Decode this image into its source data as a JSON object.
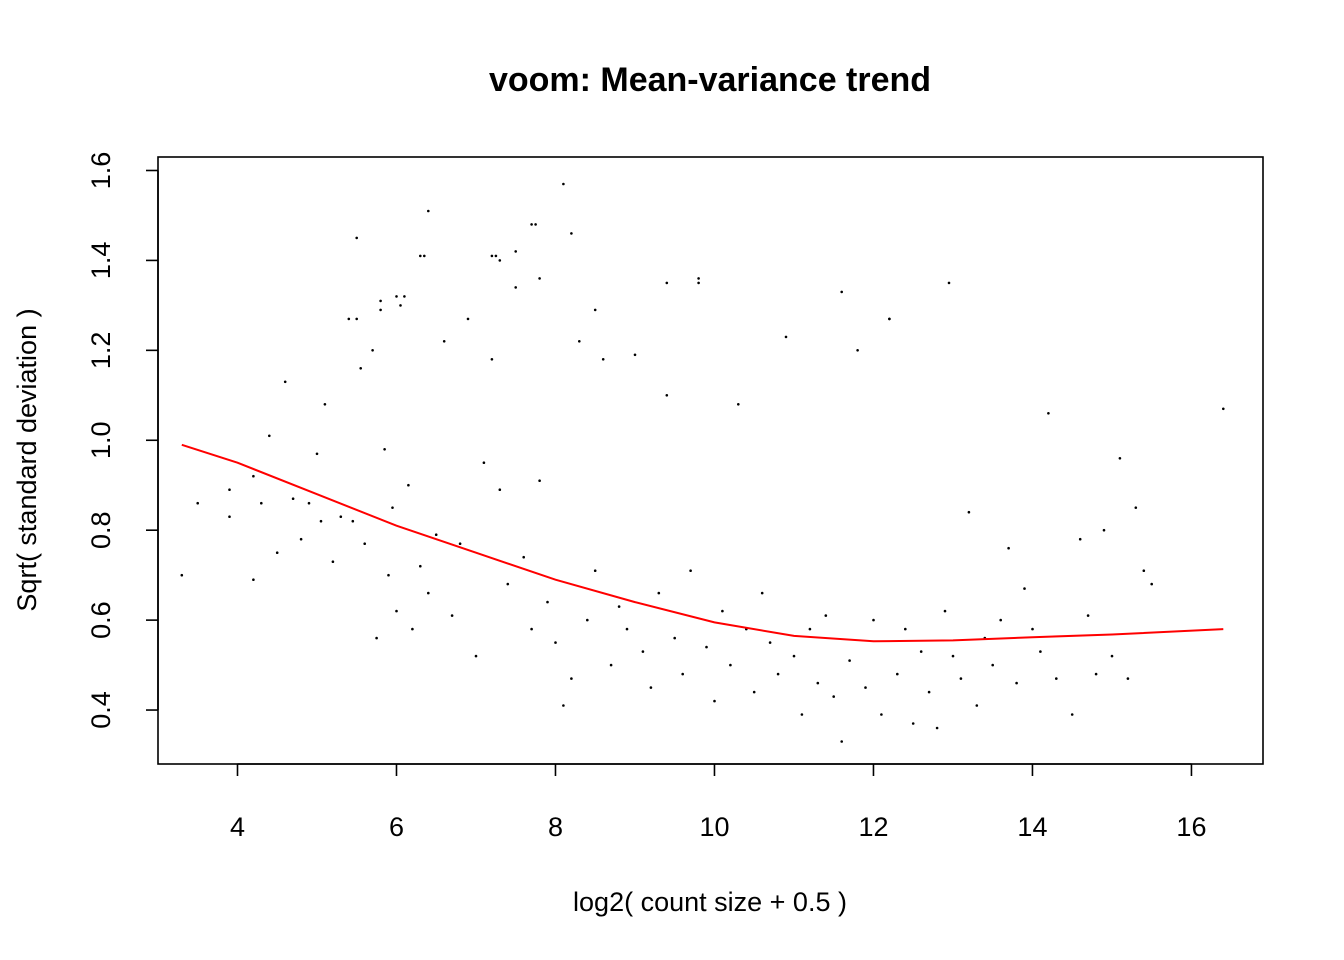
{
  "chart_data": {
    "type": "scatter",
    "title": "voom: Mean-variance trend",
    "xlabel": "log2( count size + 0.5 )",
    "ylabel": "Sqrt( standard deviation )",
    "xlim": [
      3.0,
      16.9
    ],
    "ylim": [
      0.28,
      1.63
    ],
    "x_ticks": [
      4,
      6,
      8,
      10,
      12,
      14,
      16
    ],
    "y_ticks": [
      0.4,
      0.6,
      0.8,
      1.0,
      1.2,
      1.4,
      1.6
    ],
    "x_tick_labels": [
      "4",
      "6",
      "8",
      "10",
      "12",
      "14",
      "16"
    ],
    "y_tick_labels": [
      "0.4",
      "0.6",
      "0.8",
      "1.0",
      "1.2",
      "1.4",
      "1.6"
    ],
    "point_color": "#000000",
    "trend_color": "#ff0000",
    "trend_line": {
      "x": [
        3.3,
        4.0,
        5.0,
        6.0,
        7.0,
        8.0,
        9.0,
        10.0,
        11.0,
        12.0,
        13.0,
        14.0,
        15.0,
        16.4
      ],
      "y": [
        0.99,
        0.95,
        0.88,
        0.81,
        0.75,
        0.69,
        0.64,
        0.595,
        0.565,
        0.553,
        0.555,
        0.562,
        0.568,
        0.58
      ]
    },
    "points": {
      "x": [
        3.3,
        3.5,
        3.9,
        3.9,
        4.2,
        4.2,
        4.3,
        4.4,
        4.5,
        4.6,
        4.7,
        4.8,
        4.9,
        5.0,
        5.05,
        5.1,
        5.2,
        5.3,
        5.4,
        5.45,
        5.5,
        5.55,
        5.6,
        5.7,
        5.75,
        5.8,
        5.85,
        5.9,
        5.95,
        6.0,
        6.05,
        6.1,
        6.15,
        6.2,
        6.3,
        6.35,
        6.4,
        6.5,
        6.6,
        6.7,
        6.8,
        6.9,
        7.0,
        7.1,
        7.2,
        7.25,
        7.3,
        7.4,
        7.5,
        7.6,
        7.7,
        7.75,
        7.8,
        7.9,
        8.0,
        8.1,
        8.2,
        8.3,
        8.4,
        8.5,
        8.6,
        8.7,
        8.8,
        8.9,
        9.0,
        9.1,
        9.2,
        9.3,
        9.4,
        9.5,
        9.6,
        9.7,
        9.8,
        9.9,
        10.0,
        10.1,
        10.2,
        10.3,
        10.4,
        10.5,
        10.6,
        10.7,
        10.8,
        10.9,
        11.0,
        11.1,
        11.2,
        11.3,
        11.4,
        11.5,
        11.6,
        11.7,
        11.8,
        11.9,
        12.0,
        12.1,
        12.2,
        12.3,
        12.4,
        12.5,
        12.6,
        12.7,
        12.8,
        12.9,
        13.0,
        13.1,
        13.2,
        13.3,
        13.4,
        13.5,
        13.6,
        13.7,
        13.8,
        13.9,
        14.0,
        14.1,
        14.2,
        14.3,
        14.5,
        14.6,
        14.7,
        14.8,
        14.9,
        15.0,
        15.1,
        15.2,
        15.3,
        15.4,
        15.5,
        16.4,
        8.1,
        6.4,
        8.2,
        7.7,
        5.5,
        6.3,
        7.3,
        7.2,
        7.8,
        9.8,
        12.95,
        11.6,
        8.5,
        7.5,
        9.4,
        12.2,
        6.0,
        5.8
      ],
      "y": [
        0.7,
        0.86,
        0.83,
        0.89,
        0.69,
        0.92,
        0.86,
        1.01,
        0.75,
        1.13,
        0.87,
        0.78,
        0.86,
        0.97,
        0.82,
        1.08,
        0.73,
        0.83,
        1.27,
        0.82,
        1.27,
        1.16,
        0.77,
        1.2,
        0.56,
        1.31,
        0.98,
        0.7,
        0.85,
        0.62,
        1.3,
        1.32,
        0.9,
        0.58,
        0.72,
        1.41,
        0.66,
        0.79,
        1.22,
        0.61,
        0.77,
        1.27,
        0.52,
        0.95,
        1.18,
        1.41,
        0.89,
        0.68,
        1.42,
        0.74,
        0.58,
        1.48,
        0.91,
        0.64,
        0.55,
        0.41,
        0.47,
        1.22,
        0.6,
        0.71,
        1.18,
        0.5,
        0.63,
        0.58,
        1.19,
        0.53,
        0.45,
        0.66,
        1.1,
        0.56,
        0.48,
        0.71,
        1.35,
        0.54,
        0.42,
        0.62,
        0.5,
        1.08,
        0.58,
        0.44,
        0.66,
        0.55,
        0.48,
        1.23,
        0.52,
        0.39,
        0.58,
        0.46,
        0.61,
        0.43,
        0.33,
        0.51,
        1.2,
        0.45,
        0.6,
        0.39,
        1.27,
        0.48,
        0.58,
        0.37,
        0.53,
        0.44,
        0.36,
        0.62,
        0.52,
        0.47,
        0.84,
        0.41,
        0.56,
        0.5,
        0.6,
        0.76,
        0.46,
        0.67,
        0.58,
        0.53,
        1.06,
        0.47,
        0.39,
        0.78,
        0.61,
        0.48,
        0.8,
        0.52,
        0.96,
        0.47,
        0.85,
        0.71,
        0.68,
        1.07,
        1.57,
        1.51,
        1.46,
        1.48,
        1.45,
        1.41,
        1.4,
        1.41,
        1.36,
        1.36,
        1.35,
        1.33,
        1.29,
        1.34,
        1.35,
        1.27,
        1.32,
        1.29
      ]
    }
  }
}
